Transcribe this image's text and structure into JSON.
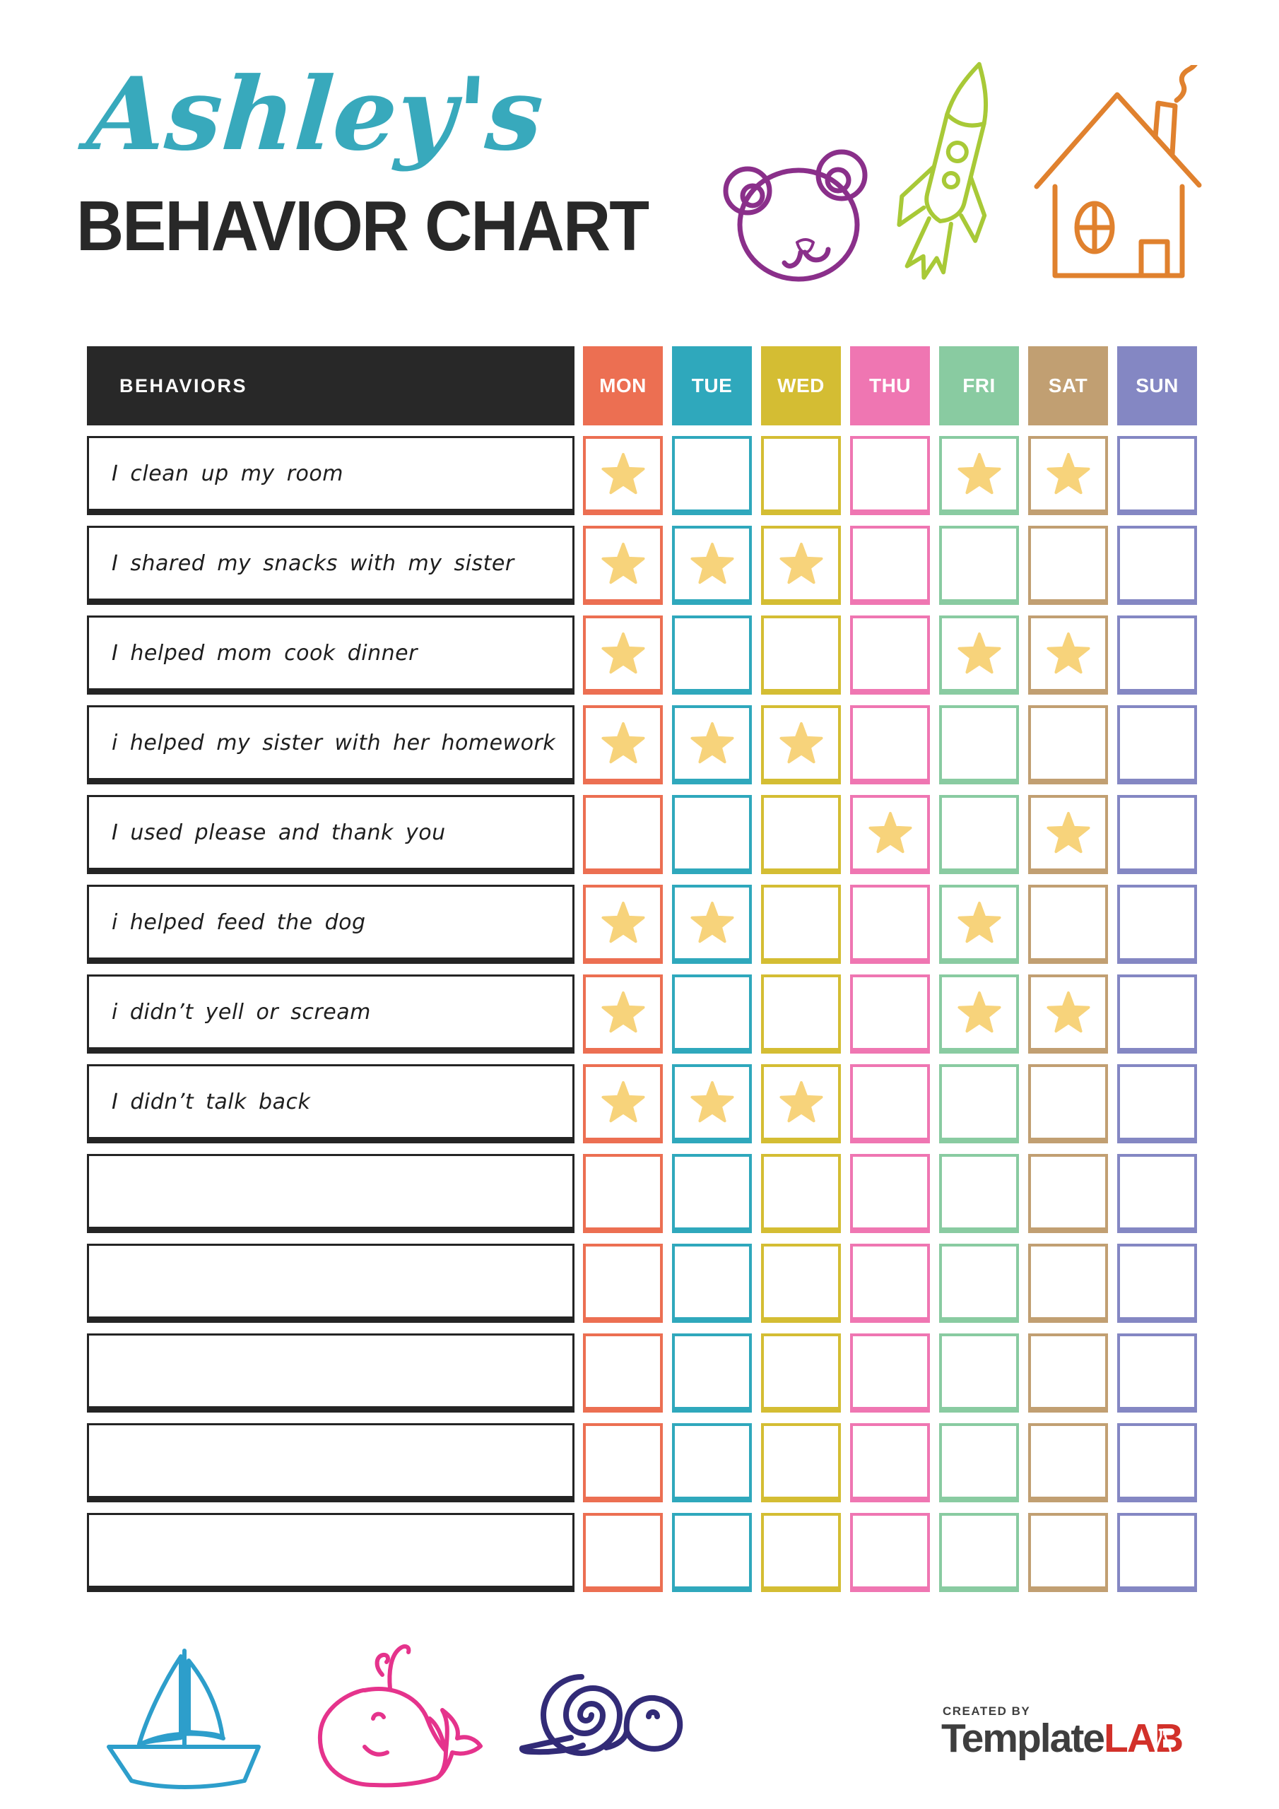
{
  "header": {
    "name_script": "Ashley's",
    "title": "BEHAVIOR CHART"
  },
  "table": {
    "behaviors_header": "BEHAVIORS",
    "days": [
      {
        "label": "MON",
        "color": "#EC6F52"
      },
      {
        "label": "TUE",
        "color": "#2FA8BC"
      },
      {
        "label": "WED",
        "color": "#D4BD33"
      },
      {
        "label": "THU",
        "color": "#EF76B2"
      },
      {
        "label": "FRI",
        "color": "#89CBA1"
      },
      {
        "label": "SAT",
        "color": "#C19F72"
      },
      {
        "label": "SUN",
        "color": "#8487C3"
      }
    ],
    "rows": [
      {
        "behavior": "I clean up my room",
        "stars": [
          "MON",
          "FRI",
          "SAT"
        ]
      },
      {
        "behavior": "I shared my snacks with my sister",
        "stars": [
          "MON",
          "TUE",
          "WED"
        ]
      },
      {
        "behavior": "I helped mom cook dinner",
        "stars": [
          "MON",
          "FRI",
          "SAT"
        ]
      },
      {
        "behavior": "i helped my sister with her homework",
        "stars": [
          "MON",
          "TUE",
          "WED"
        ]
      },
      {
        "behavior": "I used please and thank you",
        "stars": [
          "THU",
          "SAT"
        ]
      },
      {
        "behavior": "i helped feed the dog",
        "stars": [
          "MON",
          "TUE",
          "FRI"
        ]
      },
      {
        "behavior": "i didn’t yell or scream",
        "stars": [
          "MON",
          "FRI",
          "SAT"
        ]
      },
      {
        "behavior": "I didn’t talk back",
        "stars": [
          "MON",
          "TUE",
          "WED"
        ]
      },
      {
        "behavior": "",
        "stars": []
      },
      {
        "behavior": "",
        "stars": []
      },
      {
        "behavior": "",
        "stars": []
      },
      {
        "behavior": "",
        "stars": []
      },
      {
        "behavior": "",
        "stars": []
      }
    ]
  },
  "decorations": {
    "top_icons": [
      "bear-icon",
      "rocket-icon",
      "house-icon"
    ],
    "bottom_icons": [
      "sailboat-icon",
      "whale-icon",
      "snail-icon"
    ]
  },
  "footer": {
    "created_by": "CREATED BY",
    "brand_template": "Template",
    "brand_lab": "LAB"
  },
  "colors": {
    "title": "#38A9BC",
    "dark": "#282828",
    "star": "#F7D37B",
    "bear": "#8A2F8A",
    "rocket": "#A8C937",
    "house": "#E0812E",
    "boat": "#2D9ECB",
    "whale": "#E5338C",
    "snail": "#322B77",
    "logo_gray": "#3E3E3E",
    "logo_red": "#D2312A"
  }
}
